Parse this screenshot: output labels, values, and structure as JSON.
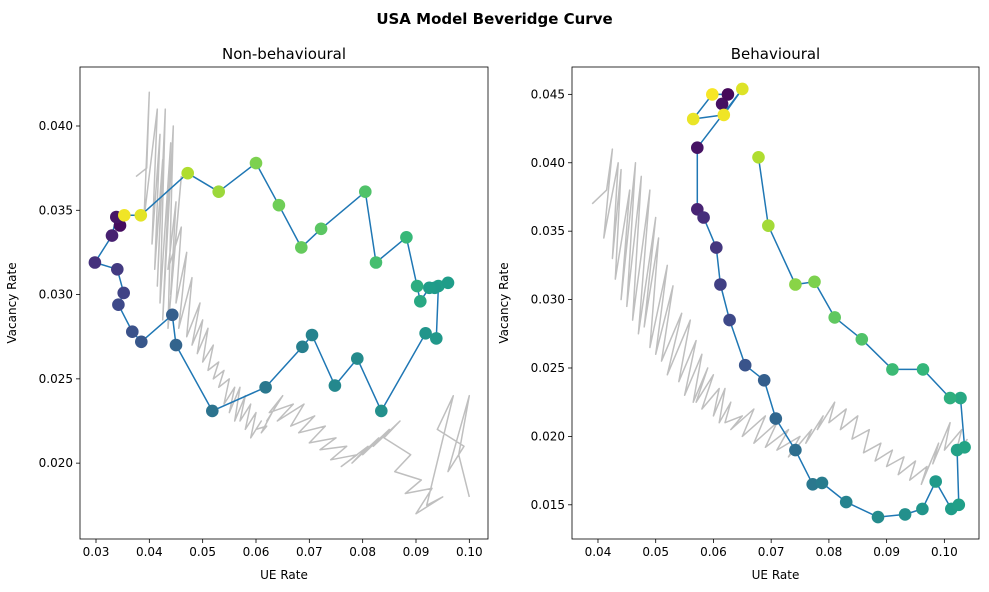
{
  "figure": {
    "title": "USA Model Beveridge Curve"
  },
  "chart_data": [
    {
      "type": "line",
      "title": "Non-behavioural",
      "xlabel": "UE Rate",
      "ylabel": "Vacancy Rate",
      "xlim": [
        0.027,
        0.1035
      ],
      "ylim": [
        0.0155,
        0.0435
      ],
      "xticks": [
        0.03,
        0.04,
        0.05,
        0.06,
        0.07,
        0.08,
        0.09,
        0.1
      ],
      "xticklabels": [
        "0.03",
        "0.04",
        "0.05",
        "0.06",
        "0.07",
        "0.08",
        "0.09",
        "0.10"
      ],
      "yticks": [
        0.02,
        0.025,
        0.03,
        0.035,
        0.04
      ],
      "yticklabels": [
        "0.020",
        "0.025",
        "0.030",
        "0.035",
        "0.040"
      ],
      "colormap": "viridis",
      "series": [
        {
          "role": "background-simulation",
          "color": "#bfbfbf",
          "x": [
            0.0375,
            0.0395,
            0.04,
            0.039,
            0.0415,
            0.0405,
            0.042,
            0.041,
            0.0425,
            0.0415,
            0.043,
            0.042,
            0.044,
            0.0425,
            0.0445,
            0.0435,
            0.046,
            0.044,
            0.045,
            0.0435,
            0.046,
            0.045,
            0.047,
            0.0455,
            0.048,
            0.047,
            0.0495,
            0.048,
            0.05,
            0.049,
            0.051,
            0.05,
            0.052,
            0.051,
            0.053,
            0.052,
            0.054,
            0.053,
            0.055,
            0.054,
            0.056,
            0.055,
            0.057,
            0.056,
            0.058,
            0.057,
            0.059,
            0.058,
            0.06,
            0.059,
            0.061,
            0.06,
            0.062,
            0.061,
            0.063,
            0.062,
            0.065,
            0.0625,
            0.067,
            0.064,
            0.069,
            0.0665,
            0.071,
            0.068,
            0.073,
            0.07,
            0.075,
            0.072,
            0.077,
            0.074,
            0.079,
            0.076,
            0.081,
            0.078,
            0.083,
            0.08,
            0.085,
            0.082,
            0.087,
            0.084,
            0.089,
            0.086,
            0.091,
            0.088,
            0.093,
            0.09,
            0.095,
            0.092,
            0.097,
            0.094,
            0.099,
            0.096,
            0.1,
            0.098,
            0.1
          ],
          "y": [
            0.037,
            0.0375,
            0.042,
            0.0345,
            0.041,
            0.033,
            0.0395,
            0.0315,
            0.038,
            0.0305,
            0.041,
            0.0295,
            0.039,
            0.0285,
            0.04,
            0.028,
            0.037,
            0.03,
            0.0355,
            0.0315,
            0.034,
            0.0295,
            0.0325,
            0.028,
            0.031,
            0.0275,
            0.0295,
            0.027,
            0.0285,
            0.0265,
            0.028,
            0.026,
            0.027,
            0.0255,
            0.026,
            0.025,
            0.0255,
            0.0245,
            0.025,
            0.0235,
            0.0245,
            0.023,
            0.0245,
            0.0225,
            0.024,
            0.0225,
            0.0235,
            0.022,
            0.023,
            0.0215,
            0.0225,
            0.022,
            0.0222,
            0.0218,
            0.023,
            0.0225,
            0.024,
            0.023,
            0.0235,
            0.0225,
            0.0235,
            0.0222,
            0.0228,
            0.0218,
            0.0222,
            0.0212,
            0.0215,
            0.0208,
            0.021,
            0.0202,
            0.0205,
            0.0198,
            0.021,
            0.02,
            0.0215,
            0.0205,
            0.022,
            0.021,
            0.0225,
            0.0215,
            0.0205,
            0.0195,
            0.019,
            0.0182,
            0.0185,
            0.017,
            0.018,
            0.0175,
            0.024,
            0.022,
            0.021,
            0.0195,
            0.024,
            0.0205,
            0.018
          ]
        },
        {
          "role": "model-path",
          "color": "#1f77b4",
          "x": [
            0.0345,
            0.0338,
            0.033,
            0.0298,
            0.034,
            0.0352,
            0.0342,
            0.0368,
            0.0385,
            0.0443,
            0.045,
            0.0518,
            0.0618,
            0.0687,
            0.0705,
            0.0748,
            0.079,
            0.0835,
            0.0918,
            0.0938,
            0.0942,
            0.096,
            0.0935,
            0.0925,
            0.0908,
            0.0902,
            0.0882,
            0.0825,
            0.0805,
            0.0722,
            0.0685,
            0.0643,
            0.06,
            0.053,
            0.0472,
            0.0384,
            0.0353
          ],
          "y": [
            0.0341,
            0.0346,
            0.0335,
            0.0319,
            0.0315,
            0.0301,
            0.0294,
            0.0278,
            0.0272,
            0.0288,
            0.027,
            0.0231,
            0.0245,
            0.0269,
            0.0276,
            0.0246,
            0.0262,
            0.0231,
            0.0277,
            0.0274,
            0.0305,
            0.0307,
            0.0304,
            0.0304,
            0.0296,
            0.0305,
            0.0334,
            0.0319,
            0.0361,
            0.0339,
            0.0328,
            0.0353,
            0.0378,
            0.0361,
            0.0372,
            0.0347,
            0.0347
          ],
          "marker_t": [
            0.03,
            0.06,
            0.09,
            0.14,
            0.17,
            0.2,
            0.22,
            0.25,
            0.27,
            0.3,
            0.32,
            0.38,
            0.4,
            0.43,
            0.45,
            0.47,
            0.48,
            0.5,
            0.52,
            0.53,
            0.56,
            0.55,
            0.54,
            0.55,
            0.6,
            0.62,
            0.67,
            0.7,
            0.72,
            0.74,
            0.76,
            0.78,
            0.8,
            0.85,
            0.88,
            0.96,
            0.98
          ]
        }
      ]
    },
    {
      "type": "line",
      "title": "Behavioural",
      "xlabel": "UE Rate",
      "ylabel": "Vacancy Rate",
      "xlim": [
        0.0355,
        0.106
      ],
      "ylim": [
        0.0125,
        0.047
      ],
      "xticks": [
        0.04,
        0.05,
        0.06,
        0.07,
        0.08,
        0.09,
        0.1
      ],
      "xticklabels": [
        "0.04",
        "0.05",
        "0.06",
        "0.07",
        "0.08",
        "0.09",
        "0.10"
      ],
      "yticks": [
        0.015,
        0.02,
        0.025,
        0.03,
        0.035,
        0.04,
        0.045
      ],
      "yticklabels": [
        "0.015",
        "0.020",
        "0.025",
        "0.030",
        "0.035",
        "0.040",
        "0.045"
      ],
      "colormap": "viridis",
      "series": [
        {
          "role": "background-simulation",
          "color": "#bfbfbf",
          "x": [
            0.039,
            0.0415,
            0.0425,
            0.041,
            0.0435,
            0.0425,
            0.044,
            0.043,
            0.0455,
            0.044,
            0.0465,
            0.045,
            0.0475,
            0.046,
            0.049,
            0.047,
            0.05,
            0.048,
            0.0505,
            0.049,
            0.052,
            0.05,
            0.053,
            0.051,
            0.0545,
            0.052,
            0.056,
            0.054,
            0.057,
            0.055,
            0.058,
            0.0565,
            0.059,
            0.057,
            0.06,
            0.058,
            0.061,
            0.06,
            0.062,
            0.061,
            0.063,
            0.062,
            0.065,
            0.063,
            0.067,
            0.065,
            0.069,
            0.067,
            0.071,
            0.069,
            0.073,
            0.071,
            0.075,
            0.073,
            0.077,
            0.076,
            0.079,
            0.078,
            0.081,
            0.08,
            0.083,
            0.082,
            0.085,
            0.084,
            0.087,
            0.086,
            0.089,
            0.088,
            0.091,
            0.09,
            0.093,
            0.092,
            0.095,
            0.094,
            0.097,
            0.096,
            0.099,
            0.098,
            0.101,
            0.1,
            0.103,
            0.102,
            0.104
          ],
          "y": [
            0.037,
            0.038,
            0.041,
            0.0345,
            0.04,
            0.033,
            0.0395,
            0.0315,
            0.038,
            0.03,
            0.04,
            0.0295,
            0.039,
            0.0285,
            0.038,
            0.0275,
            0.036,
            0.028,
            0.0345,
            0.0265,
            0.0325,
            0.026,
            0.031,
            0.0255,
            0.029,
            0.0245,
            0.0285,
            0.024,
            0.027,
            0.023,
            0.026,
            0.0225,
            0.025,
            0.0225,
            0.0245,
            0.022,
            0.0235,
            0.0215,
            0.0235,
            0.021,
            0.0225,
            0.021,
            0.0215,
            0.0205,
            0.022,
            0.02,
            0.0215,
            0.0195,
            0.021,
            0.0192,
            0.0205,
            0.019,
            0.02,
            0.0185,
            0.0205,
            0.0195,
            0.0215,
            0.0205,
            0.0225,
            0.021,
            0.022,
            0.0205,
            0.0215,
            0.0198,
            0.0205,
            0.0188,
            0.0195,
            0.0182,
            0.019,
            0.0178,
            0.0185,
            0.0172,
            0.0182,
            0.0168,
            0.0178,
            0.0165,
            0.0195,
            0.018,
            0.021,
            0.019,
            0.0205,
            0.0188,
            0.0198
          ]
        },
        {
          "role": "model-path",
          "color": "#1f77b4",
          "x": [
            0.0615,
            0.0625,
            0.0598,
            0.0565,
            0.0618,
            0.065,
            0.0572,
            0.0572,
            0.0583,
            0.0605,
            0.0612,
            0.0628,
            0.0655,
            0.0688,
            0.0708,
            0.0742,
            0.0772,
            0.0788,
            0.083,
            0.0885,
            0.0932,
            0.0962,
            0.0985,
            0.1012,
            0.1025,
            0.1022,
            0.1035,
            0.1028,
            0.101,
            0.0963,
            0.091,
            0.0857,
            0.081,
            0.0775,
            0.0742,
            0.0695,
            0.0678
          ],
          "y": [
            0.0443,
            0.045,
            0.045,
            0.0432,
            0.0435,
            0.0454,
            0.0411,
            0.0366,
            0.036,
            0.0338,
            0.0311,
            0.0285,
            0.0252,
            0.0241,
            0.0213,
            0.019,
            0.0165,
            0.0166,
            0.0152,
            0.0141,
            0.0143,
            0.0147,
            0.0167,
            0.0147,
            0.015,
            0.019,
            0.0192,
            0.0228,
            0.0228,
            0.0249,
            0.0249,
            0.0271,
            0.0287,
            0.0313,
            0.0311,
            0.0354,
            0.0404
          ],
          "marker_t": [
            0.04,
            0.02,
            0.99,
            0.97,
            0.98,
            0.95,
            0.05,
            0.1,
            0.13,
            0.16,
            0.19,
            0.22,
            0.26,
            0.3,
            0.33,
            0.36,
            0.4,
            0.42,
            0.45,
            0.48,
            0.5,
            0.52,
            0.54,
            0.55,
            0.56,
            0.57,
            0.58,
            0.6,
            0.63,
            0.66,
            0.68,
            0.72,
            0.75,
            0.8,
            0.82,
            0.86,
            0.88
          ]
        }
      ]
    }
  ]
}
